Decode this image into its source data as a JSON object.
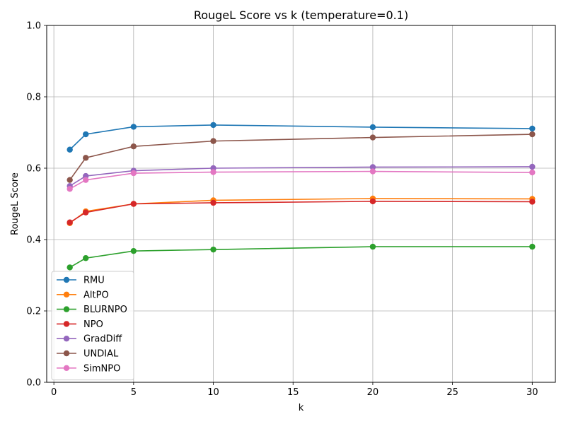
{
  "chart_data": {
    "type": "line",
    "title": "RougeL Score vs k (temperature=0.1)",
    "xlabel": "k",
    "ylabel": "RougeL Score",
    "xlim": [
      -0.45,
      31.45
    ],
    "ylim": [
      0.0,
      1.0
    ],
    "xticks": [
      0,
      5,
      10,
      15,
      20,
      25,
      30
    ],
    "yticks": [
      0.0,
      0.2,
      0.4,
      0.6,
      0.8,
      1.0
    ],
    "xtick_labels": [
      "0",
      "5",
      "10",
      "15",
      "20",
      "25",
      "30"
    ],
    "ytick_labels": [
      "0.0",
      "0.2",
      "0.4",
      "0.6",
      "0.8",
      "1.0"
    ],
    "grid": true,
    "legend_position": "lower-left",
    "x": [
      1,
      2,
      5,
      10,
      20,
      30
    ],
    "series": [
      {
        "name": "RMU",
        "color": "#1f77b4",
        "values": [
          0.652,
          0.695,
          0.716,
          0.721,
          0.715,
          0.711
        ]
      },
      {
        "name": "AltPO",
        "color": "#ff7f0e",
        "values": [
          0.446,
          0.479,
          0.5,
          0.51,
          0.515,
          0.514
        ]
      },
      {
        "name": "BLURNPO",
        "color": "#2ca02c",
        "values": [
          0.322,
          0.348,
          0.368,
          0.372,
          0.38,
          0.38
        ]
      },
      {
        "name": "NPO",
        "color": "#d62728",
        "values": [
          0.448,
          0.476,
          0.5,
          0.503,
          0.507,
          0.506
        ]
      },
      {
        "name": "GradDiff",
        "color": "#9467bd",
        "values": [
          0.55,
          0.578,
          0.593,
          0.6,
          0.603,
          0.604
        ]
      },
      {
        "name": "UNDIAL",
        "color": "#8c564b",
        "values": [
          0.567,
          0.629,
          0.661,
          0.676,
          0.686,
          0.695
        ]
      },
      {
        "name": "SimNPO",
        "color": "#e377c2",
        "values": [
          0.542,
          0.567,
          0.586,
          0.589,
          0.591,
          0.588
        ]
      }
    ]
  }
}
